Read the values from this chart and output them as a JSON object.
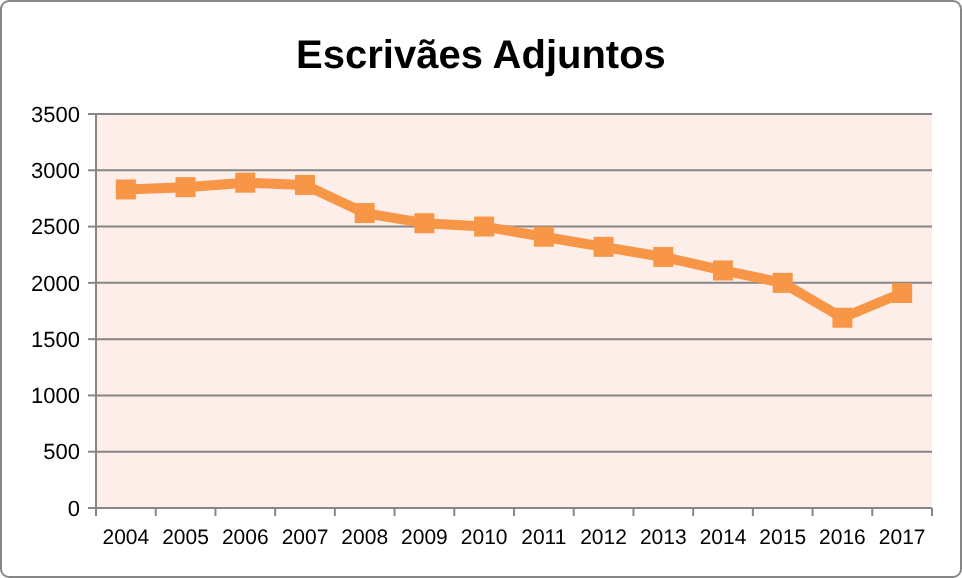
{
  "chart_data": {
    "type": "line",
    "title": "Escrivães Adjuntos",
    "categories": [
      "2004",
      "2005",
      "2006",
      "2007",
      "2008",
      "2009",
      "2010",
      "2011",
      "2012",
      "2013",
      "2014",
      "2015",
      "2016",
      "2017"
    ],
    "series": [
      {
        "color": "#f79646",
        "values": [
          2830,
          2850,
          2890,
          2870,
          2620,
          2530,
          2500,
          2410,
          2320,
          2230,
          2110,
          2000,
          1690,
          1910
        ]
      }
    ],
    "ylim": [
      0,
      3500
    ],
    "yticks": [
      0,
      500,
      1000,
      1500,
      2000,
      2500,
      3000,
      3500
    ],
    "grid": "y",
    "marker": "square",
    "line_style": "solid"
  }
}
